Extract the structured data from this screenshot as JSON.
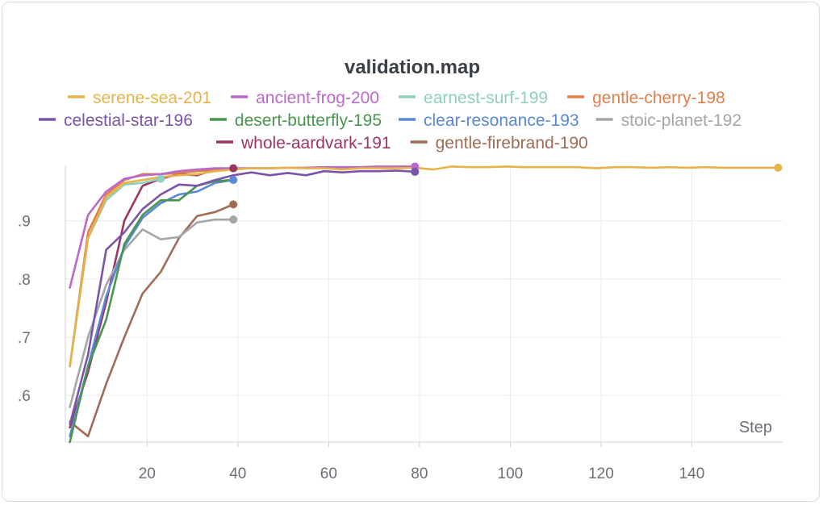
{
  "chart_data": {
    "type": "line",
    "title": "validation.map",
    "xlabel": "Step",
    "ylabel": "",
    "xlim": [
      2,
      160
    ],
    "ylim": [
      0.52,
      0.995
    ],
    "x_ticks": [
      20,
      40,
      60,
      80,
      100,
      120,
      140
    ],
    "y_ticks": [
      0.6,
      0.7,
      0.8,
      0.9
    ],
    "y_tick_labels": [
      ".6",
      ".7",
      ".8",
      ".9"
    ],
    "grid": true,
    "legend_position": "top",
    "series": [
      {
        "name": "serene-sea-201",
        "color": "#e6b34a",
        "end_marker": true,
        "x": [
          3,
          7,
          11,
          15,
          19,
          23,
          27,
          31,
          35,
          39,
          43,
          47,
          51,
          55,
          59,
          63,
          67,
          71,
          75,
          79,
          83,
          87,
          91,
          95,
          99,
          103,
          107,
          111,
          115,
          119,
          123,
          127,
          131,
          135,
          139,
          143,
          147,
          151,
          155,
          159
        ],
        "y": [
          0.65,
          0.87,
          0.94,
          0.965,
          0.97,
          0.975,
          0.978,
          0.98,
          0.985,
          0.988,
          0.99,
          0.99,
          0.991,
          0.99,
          0.99,
          0.988,
          0.99,
          0.99,
          0.99,
          0.991,
          0.988,
          0.993,
          0.992,
          0.992,
          0.993,
          0.992,
          0.992,
          0.992,
          0.992,
          0.99,
          0.992,
          0.992,
          0.991,
          0.992,
          0.991,
          0.992,
          0.991,
          0.991,
          0.991,
          0.991
        ]
      },
      {
        "name": "ancient-frog-200",
        "color": "#b969c9",
        "end_marker": true,
        "x": [
          3,
          7,
          11,
          15,
          19,
          23,
          27,
          31,
          35,
          39,
          43,
          47,
          51,
          55,
          59,
          63,
          67,
          71,
          75,
          79
        ],
        "y": [
          0.785,
          0.91,
          0.95,
          0.972,
          0.978,
          0.98,
          0.985,
          0.988,
          0.99,
          0.99,
          0.99,
          0.99,
          0.991,
          0.991,
          0.992,
          0.992,
          0.992,
          0.993,
          0.993,
          0.993
        ]
      },
      {
        "name": "earnest-surf-199",
        "color": "#8fd0bd",
        "end_marker": true,
        "x": [
          3,
          7,
          11,
          15,
          19,
          23
        ],
        "y": [
          0.65,
          0.87,
          0.935,
          0.962,
          0.965,
          0.972
        ]
      },
      {
        "name": "gentle-cherry-198",
        "color": "#df7e4b",
        "end_marker": true,
        "x": [
          3,
          7,
          11,
          15,
          19,
          23,
          27,
          31,
          35,
          39
        ],
        "y": [
          0.65,
          0.88,
          0.945,
          0.97,
          0.98,
          0.98,
          0.982,
          0.985,
          0.988,
          0.99
        ]
      },
      {
        "name": "celestial-star-196",
        "color": "#7a54a9",
        "end_marker": true,
        "x": [
          3,
          7,
          11,
          15,
          19,
          23,
          27,
          31,
          35,
          39,
          43,
          47,
          51,
          55,
          59,
          63,
          67,
          71,
          75,
          79
        ],
        "y": [
          0.55,
          0.67,
          0.85,
          0.88,
          0.92,
          0.945,
          0.962,
          0.96,
          0.97,
          0.978,
          0.983,
          0.978,
          0.982,
          0.978,
          0.985,
          0.983,
          0.985,
          0.985,
          0.986,
          0.984
        ]
      },
      {
        "name": "desert-butterfly-195",
        "color": "#4a9651",
        "end_marker": false,
        "x": [
          3,
          7,
          11,
          15,
          19,
          23,
          27,
          31,
          35,
          39
        ],
        "y": [
          0.52,
          0.65,
          0.73,
          0.86,
          0.91,
          0.935,
          0.935,
          0.96,
          0.968,
          0.97
        ]
      },
      {
        "name": "clear-resonance-193",
        "color": "#5a87d8",
        "end_marker": true,
        "x": [
          3,
          7,
          11,
          15,
          19,
          23,
          27,
          31,
          35,
          39
        ],
        "y": [
          0.53,
          0.65,
          0.77,
          0.855,
          0.905,
          0.93,
          0.945,
          0.95,
          0.965,
          0.97
        ]
      },
      {
        "name": "stoic-planet-192",
        "color": "#a3a6ab",
        "end_marker": true,
        "x": [
          3,
          7,
          11,
          15,
          19,
          23,
          27,
          31,
          35,
          39
        ],
        "y": [
          0.58,
          0.7,
          0.79,
          0.85,
          0.885,
          0.868,
          0.872,
          0.897,
          0.902,
          0.902
        ]
      },
      {
        "name": "whole-aardvark-191",
        "color": "#9e3464",
        "end_marker": true,
        "x": [
          3,
          7,
          11,
          15,
          19,
          23,
          27,
          31,
          35,
          39
        ],
        "y": [
          0.545,
          0.64,
          0.76,
          0.9,
          0.96,
          0.972,
          0.98,
          0.978,
          0.988,
          0.99
        ]
      },
      {
        "name": "gentle-firebrand-190",
        "color": "#a06c55",
        "end_marker": true,
        "x": [
          3,
          7,
          11,
          15,
          19,
          23,
          27,
          31,
          35,
          39
        ],
        "y": [
          0.555,
          0.53,
          0.62,
          0.7,
          0.775,
          0.812,
          0.87,
          0.908,
          0.915,
          0.928
        ]
      }
    ]
  }
}
